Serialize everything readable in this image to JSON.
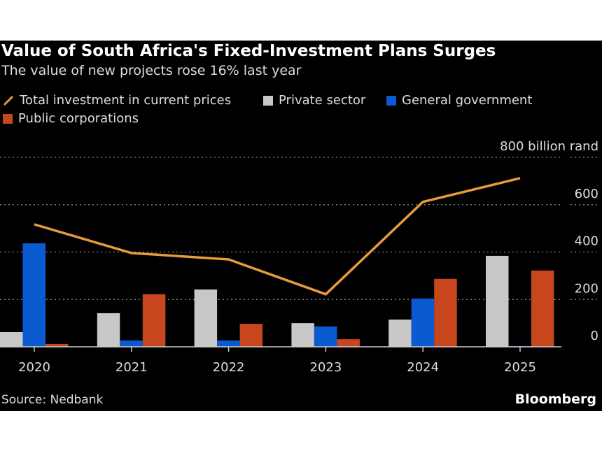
{
  "title": "Value of South Africa's Fixed-Investment Plans Surges",
  "subtitle": "The value of new projects rose 16% last year",
  "source": "Source: Nedbank",
  "brand": "Bloomberg",
  "chart_data": {
    "type": "bar",
    "categories": [
      "2020",
      "2021",
      "2022",
      "2023",
      "2024",
      "2025"
    ],
    "series": [
      {
        "name": "Private sector",
        "type": "bar",
        "color": "#c8c8c8",
        "values": [
          62,
          142,
          242,
          100,
          115,
          384
        ]
      },
      {
        "name": "General government",
        "type": "bar",
        "color": "#0a5ad0",
        "values": [
          437,
          27,
          27,
          86,
          204,
          3
        ]
      },
      {
        "name": "Public corporations",
        "type": "bar",
        "color": "#c8461e",
        "values": [
          12,
          222,
          97,
          32,
          287,
          322
        ]
      },
      {
        "name": "Total investment in current prices",
        "type": "line",
        "color": "#e89a3c",
        "values": [
          517,
          396,
          369,
          222,
          612,
          712
        ]
      }
    ],
    "ylim": [
      0,
      800
    ],
    "yticks": [
      "0",
      "200",
      "400",
      "600",
      "800 billion rand"
    ],
    "ytick_values": [
      0,
      200,
      400,
      600,
      800
    ],
    "ylabel": "billion rand",
    "grid": true,
    "legend_placement": "top-left"
  }
}
